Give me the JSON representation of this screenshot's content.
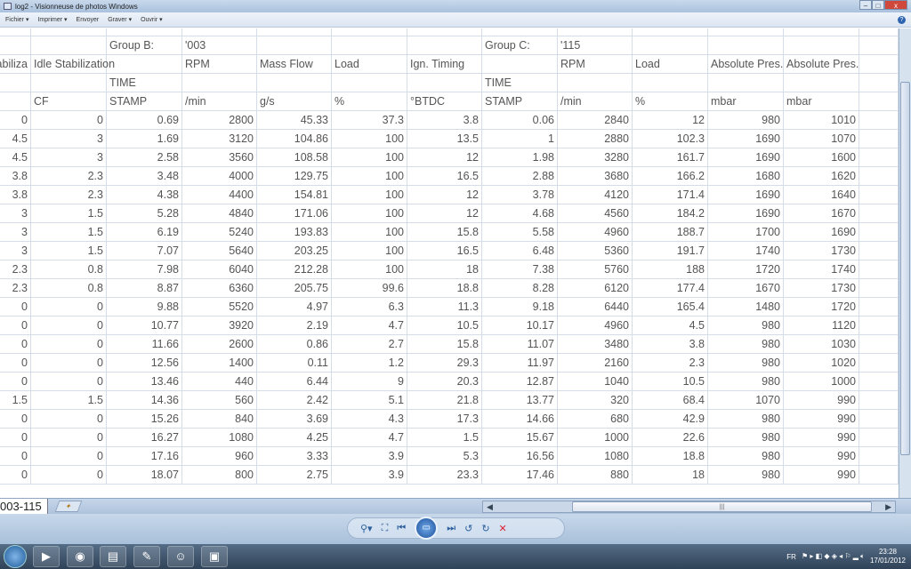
{
  "window": {
    "title": "log2 - Visionneuse de photos Windows",
    "minimize": "–",
    "maximize": "□",
    "close": "x"
  },
  "menu": {
    "items": [
      "Fichier ▾",
      "Imprimer ▾",
      "Envoyer",
      "Graver ▾",
      "Ouvrir ▾"
    ],
    "help": "?"
  },
  "sheet": {
    "header_rows": [
      [
        "",
        "",
        "Group B:",
        "'003",
        "",
        "",
        "",
        "Group C:",
        "'115",
        "",
        "",
        "",
        ""
      ],
      [
        "Stabiliza",
        "Idle Stabilization",
        "",
        "RPM",
        "Mass Flow",
        "Load",
        "Ign. Timing",
        "",
        "RPM",
        "Load",
        "Absolute Pres.",
        "Absolute Pres.",
        ""
      ],
      [
        "",
        "",
        "TIME",
        "",
        "",
        "",
        "",
        "TIME",
        "",
        "",
        "",
        "",
        ""
      ],
      [
        "",
        "CF",
        "STAMP",
        "/min",
        "g/s",
        "%",
        "°BTDC",
        "STAMP",
        "/min",
        "%",
        "mbar",
        "mbar",
        ""
      ]
    ],
    "rows": [
      [
        "0",
        "0",
        "0.69",
        "2800",
        "45.33",
        "37.3",
        "3.8",
        "0.06",
        "2840",
        "12",
        "980",
        "1010"
      ],
      [
        "4.5",
        "3",
        "1.69",
        "3120",
        "104.86",
        "100",
        "13.5",
        "1",
        "2880",
        "102.3",
        "1690",
        "1070"
      ],
      [
        "4.5",
        "3",
        "2.58",
        "3560",
        "108.58",
        "100",
        "12",
        "1.98",
        "3280",
        "161.7",
        "1690",
        "1600"
      ],
      [
        "3.8",
        "2.3",
        "3.48",
        "4000",
        "129.75",
        "100",
        "16.5",
        "2.88",
        "3680",
        "166.2",
        "1680",
        "1620"
      ],
      [
        "3.8",
        "2.3",
        "4.38",
        "4400",
        "154.81",
        "100",
        "12",
        "3.78",
        "4120",
        "171.4",
        "1690",
        "1640"
      ],
      [
        "3",
        "1.5",
        "5.28",
        "4840",
        "171.06",
        "100",
        "12",
        "4.68",
        "4560",
        "184.2",
        "1690",
        "1670"
      ],
      [
        "3",
        "1.5",
        "6.19",
        "5240",
        "193.83",
        "100",
        "15.8",
        "5.58",
        "4960",
        "188.7",
        "1700",
        "1690"
      ],
      [
        "3",
        "1.5",
        "7.07",
        "5640",
        "203.25",
        "100",
        "16.5",
        "6.48",
        "5360",
        "191.7",
        "1740",
        "1730"
      ],
      [
        "2.3",
        "0.8",
        "7.98",
        "6040",
        "212.28",
        "100",
        "18",
        "7.38",
        "5760",
        "188",
        "1720",
        "1740"
      ],
      [
        "2.3",
        "0.8",
        "8.87",
        "6360",
        "205.75",
        "99.6",
        "18.8",
        "8.28",
        "6120",
        "177.4",
        "1670",
        "1730"
      ],
      [
        "0",
        "0",
        "9.88",
        "5520",
        "4.97",
        "6.3",
        "11.3",
        "9.18",
        "6440",
        "165.4",
        "1480",
        "1720"
      ],
      [
        "0",
        "0",
        "10.77",
        "3920",
        "2.19",
        "4.7",
        "10.5",
        "10.17",
        "4960",
        "4.5",
        "980",
        "1120"
      ],
      [
        "0",
        "0",
        "11.66",
        "2600",
        "0.86",
        "2.7",
        "15.8",
        "11.07",
        "3480",
        "3.8",
        "980",
        "1030"
      ],
      [
        "0",
        "0",
        "12.56",
        "1400",
        "0.11",
        "1.2",
        "29.3",
        "11.97",
        "2160",
        "2.3",
        "980",
        "1020"
      ],
      [
        "0",
        "0",
        "13.46",
        "440",
        "6.44",
        "9",
        "20.3",
        "12.87",
        "1040",
        "10.5",
        "980",
        "1000"
      ],
      [
        "1.5",
        "1.5",
        "14.36",
        "560",
        "2.42",
        "5.1",
        "21.8",
        "13.77",
        "320",
        "68.4",
        "1070",
        "990"
      ],
      [
        "0",
        "0",
        "15.26",
        "840",
        "3.69",
        "4.3",
        "17.3",
        "14.66",
        "680",
        "42.9",
        "980",
        "990"
      ],
      [
        "0",
        "0",
        "16.27",
        "1080",
        "4.25",
        "4.7",
        "1.5",
        "15.67",
        "1000",
        "22.6",
        "980",
        "990"
      ],
      [
        "0",
        "0",
        "17.16",
        "960",
        "3.33",
        "3.9",
        "5.3",
        "16.56",
        "1080",
        "18.8",
        "980",
        "990"
      ],
      [
        "0",
        "0",
        "18.07",
        "800",
        "2.75",
        "3.9",
        "23.3",
        "17.46",
        "880",
        "18",
        "980",
        "990"
      ]
    ],
    "tab_label": "003-115"
  },
  "viewer_controls": {
    "zoom": "⚲▾",
    "fit": "⛶",
    "prev": "⏮",
    "slideshow": "▭",
    "next": "⏭",
    "rotate_ccw": "↺",
    "rotate_cw": "↻",
    "delete": "✕"
  },
  "taskbar": {
    "language": "FR",
    "time": "23:28",
    "date": "17/01/2012"
  },
  "colors": {
    "accent": "#2a5d9c",
    "grid_line": "#d5dde8",
    "cell_text": "#555555"
  }
}
